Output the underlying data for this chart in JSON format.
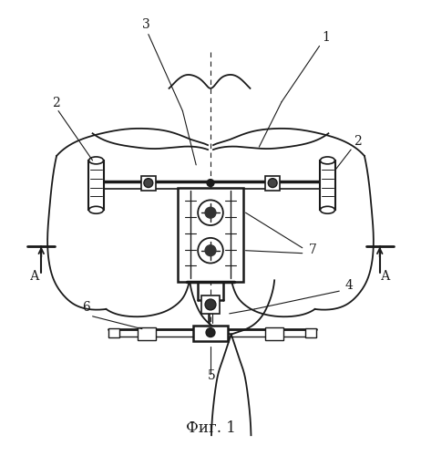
{
  "title": "Фиг. 1",
  "background_color": "#ffffff",
  "lc": "#1a1a1a",
  "fig_width": 4.62,
  "fig_height": 5.0,
  "dpi": 100
}
